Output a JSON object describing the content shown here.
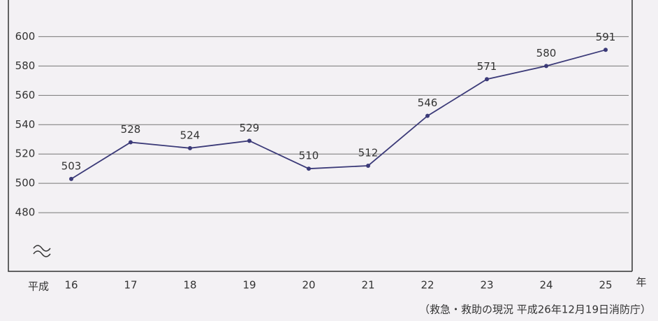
{
  "chart_data": {
    "type": "line",
    "x_prefix": "平成",
    "x_suffix": "年",
    "categories": [
      "16",
      "17",
      "18",
      "19",
      "20",
      "21",
      "22",
      "23",
      "24",
      "25"
    ],
    "values": [
      503,
      528,
      524,
      529,
      510,
      512,
      546,
      571,
      580,
      591
    ],
    "color": "#3b3a78",
    "ylim": [
      440,
      625
    ],
    "yticks": [
      480,
      500,
      520,
      540,
      560,
      580,
      600
    ],
    "grid": true,
    "source": "（救急・救助の現況 平成26年12月19日消防庁）"
  }
}
